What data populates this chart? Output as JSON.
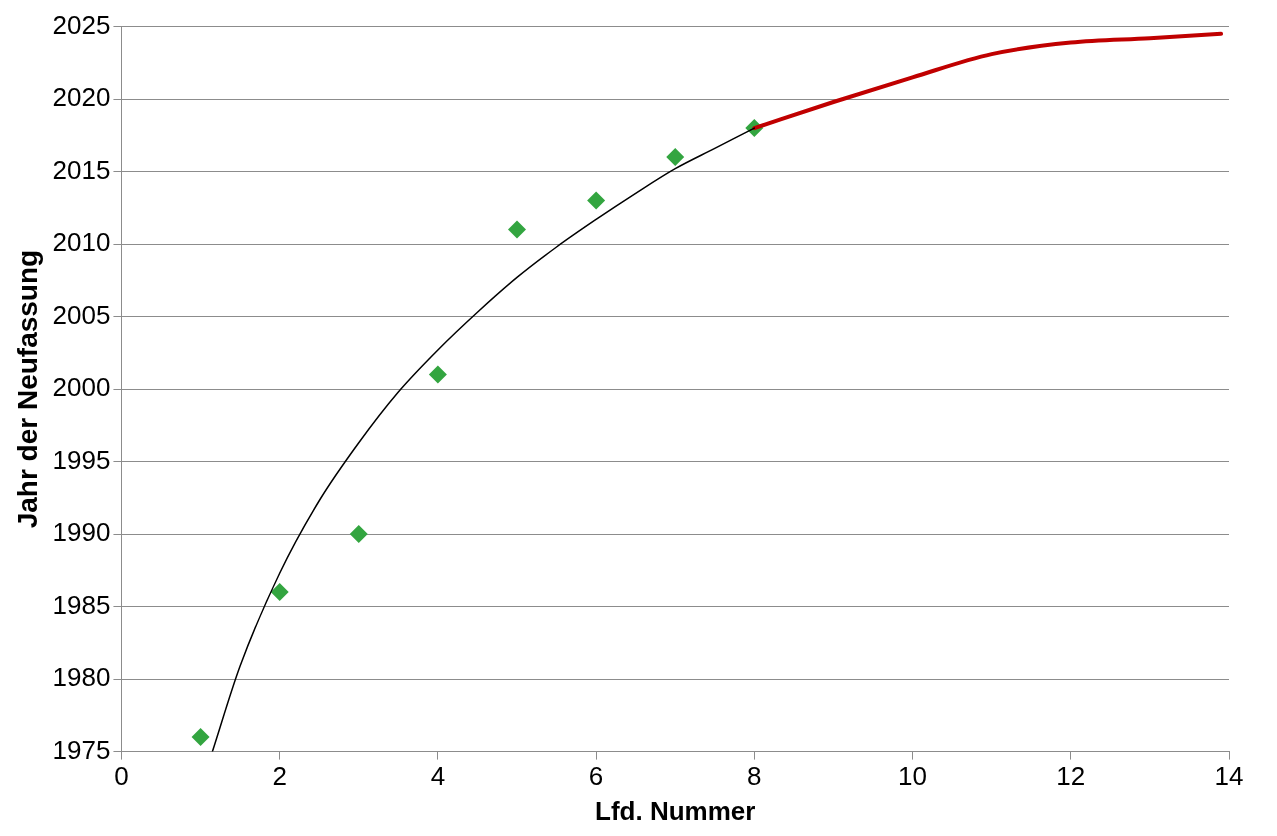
{
  "chart_data": {
    "type": "scatter",
    "xlabel": "Lfd. Nummer",
    "ylabel": "Jahr der Neufassung",
    "xlim": [
      0,
      14
    ],
    "xticks": [
      0,
      2,
      4,
      6,
      8,
      10,
      12,
      14
    ],
    "ylim": [
      1975,
      2025
    ],
    "yticks": [
      1975,
      1980,
      1985,
      1990,
      1995,
      2000,
      2005,
      2010,
      2015,
      2020,
      2025
    ],
    "grid": "y",
    "legend": false,
    "series": [
      {
        "type": "line",
        "color": "#000000",
        "marker": "none",
        "x": [
          1.15,
          1.5,
          2,
          2.5,
          3,
          3.5,
          4,
          4.5,
          5,
          5.5,
          6,
          6.5,
          7,
          7.5,
          8
        ],
        "values": [
          1975,
          1980.9,
          1987.3,
          1992.3,
          1996.3,
          1999.8,
          2002.7,
          2005.3,
          2007.7,
          2009.8,
          2011.7,
          2013.5,
          2015.2,
          2016.6,
          2018
        ]
      },
      {
        "type": "line",
        "color": "#c00000",
        "marker": "none",
        "x": [
          8,
          9,
          10,
          11,
          12,
          13,
          13.9
        ],
        "values": [
          2018,
          2019.8,
          2021.5,
          2023.1,
          2023.9,
          2024.2,
          2024.5
        ]
      },
      {
        "type": "scatter",
        "color": "#33a540",
        "marker": "diamond",
        "x": [
          1,
          2,
          3,
          4,
          5,
          6,
          7,
          8
        ],
        "values": [
          1976,
          1986,
          1990,
          2001,
          2011,
          2013,
          2016,
          2018
        ]
      }
    ]
  }
}
